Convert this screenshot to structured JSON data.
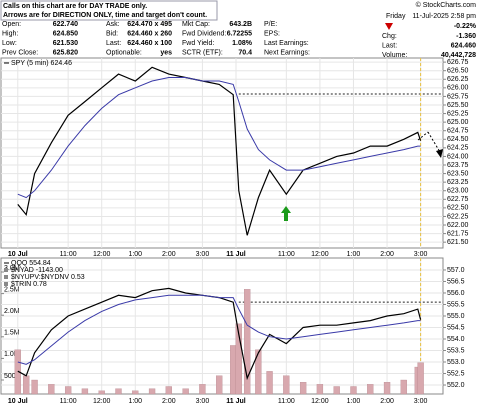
{
  "header": {
    "notice": [
      "Calls on this chart are for DAY TRADE only.",
      "Arrows are for DIRECTION ONLY, time and target don't count."
    ],
    "columns": [
      [
        [
          "Open:",
          "622.740"
        ],
        [
          "High:",
          "624.850"
        ],
        [
          "Low:",
          "621.530"
        ],
        [
          "Prev Close:",
          "625.820"
        ]
      ],
      [
        [
          "Ask:",
          "624.470 x 495"
        ],
        [
          "Bid:",
          "624.460 x 260"
        ],
        [
          "Last:",
          "624.460 x 100"
        ],
        [
          "Optionable:",
          "yes"
        ]
      ],
      [
        [
          "Mkt Cap:",
          "643.2B"
        ],
        [
          "Fwd Dividend:",
          "6.72255"
        ],
        [
          "Fwd Yield:",
          "1.08%"
        ],
        [
          "SCTR (ETF):",
          "70.4"
        ]
      ]
    ],
    "earnings_labels": [
      "P/E:",
      "EPS:",
      "Last Earnings:",
      "Next Earnings:"
    ],
    "date": [
      "Friday",
      "11-Jul-2025  2:58 pm"
    ],
    "change_pct": "-0.22%",
    "summary": [
      [
        "Chg:",
        "-1.360"
      ],
      [
        "Last:",
        "624.460"
      ],
      [
        "Volume:",
        "40,442,728"
      ]
    ],
    "watermark": "© StockCharts.com"
  },
  "chart_data": [
    {
      "type": "line",
      "grid": true,
      "x": [
        0,
        3,
        6,
        12,
        18,
        24,
        30,
        36,
        42,
        48,
        54,
        60,
        66,
        72,
        77,
        79,
        82,
        86,
        90,
        96,
        102,
        108,
        114,
        120,
        126,
        132,
        138,
        143,
        144
      ],
      "xlim": [
        -6,
        152
      ],
      "xticks": [
        {
          "value": 0,
          "label": "10 Jul"
        },
        {
          "value": 18,
          "label": "11:00"
        },
        {
          "value": 30,
          "label": "12:00"
        },
        {
          "value": 42,
          "label": "1:00"
        },
        {
          "value": 54,
          "label": "2:00"
        },
        {
          "value": 66,
          "label": "3:00"
        },
        {
          "value": 78,
          "label": "11 Jul"
        },
        {
          "value": 96,
          "label": "11:00"
        },
        {
          "value": 108,
          "label": "12:00"
        },
        {
          "value": 120,
          "label": "1:00"
        },
        {
          "value": 132,
          "label": "2:00"
        },
        {
          "value": 144,
          "label": "3:00"
        }
      ],
      "ylim": [
        621.33,
        626.87
      ],
      "yticks": [
        626.75,
        {
          "value": 626.5,
          "label": "626.50"
        },
        626.25,
        {
          "value": 626,
          "label": "626.00"
        },
        625.75,
        {
          "value": 625.5,
          "label": "625.50"
        },
        625.25,
        {
          "value": 625,
          "label": "625.00"
        },
        624.75,
        {
          "value": 624.5,
          "label": "624.50"
        },
        624.25,
        {
          "value": 624,
          "label": "624.00"
        },
        623.75,
        {
          "value": 623.5,
          "label": "623.50"
        },
        623.25,
        {
          "value": 623,
          "label": "623.00"
        },
        622.75,
        {
          "value": 622.5,
          "label": "622.50"
        },
        622.25,
        {
          "value": 622,
          "label": "622.00"
        },
        621.75,
        {
          "value": 621.5,
          "label": "621.50"
        }
      ],
      "hline": 625.82,
      "series": [
        {
          "name": "SPY (5 min) 624.46",
          "color": "#000000",
          "values": [
            622.6,
            622.3,
            623.5,
            624.4,
            625.2,
            625.6,
            626.0,
            626.4,
            626.2,
            626.6,
            626.4,
            626.3,
            626.2,
            626.1,
            625.8,
            623.0,
            621.7,
            622.8,
            623.6,
            622.9,
            623.6,
            623.8,
            624.0,
            624.1,
            624.3,
            624.3,
            624.5,
            624.7,
            624.46
          ]
        },
        {
          "color": "#3a3aa8",
          "values": [
            622.9,
            622.8,
            623.0,
            623.6,
            624.3,
            624.9,
            625.4,
            625.8,
            626.0,
            626.2,
            626.3,
            626.3,
            626.2,
            626.2,
            626.1,
            625.6,
            624.8,
            624.2,
            623.9,
            623.6,
            623.6,
            623.7,
            623.8,
            623.9,
            624.0,
            624.1,
            624.2,
            624.3,
            624.3
          ]
        }
      ]
    },
    {
      "type": "line",
      "grid": true,
      "x": [
        0,
        3,
        6,
        12,
        18,
        24,
        30,
        36,
        42,
        48,
        54,
        60,
        66,
        72,
        77,
        79,
        82,
        86,
        90,
        96,
        102,
        108,
        114,
        120,
        126,
        132,
        138,
        143,
        144
      ],
      "xlim": [
        -6,
        152
      ],
      "xticks": [
        {
          "value": 0,
          "label": "10 Jul"
        },
        {
          "value": 18,
          "label": "11:00"
        },
        {
          "value": 30,
          "label": "12:00"
        },
        {
          "value": 42,
          "label": "1:00"
        },
        {
          "value": 54,
          "label": "2:00"
        },
        {
          "value": 66,
          "label": "3:00"
        },
        {
          "value": 78,
          "label": "11 Jul"
        },
        {
          "value": 96,
          "label": "11:00"
        },
        {
          "value": 108,
          "label": "12:00"
        },
        {
          "value": 120,
          "label": "1:00"
        },
        {
          "value": 132,
          "label": "2:00"
        },
        {
          "value": 144,
          "label": "3:00"
        }
      ],
      "ylim": [
        551.61,
        557.52
      ],
      "yticks": [
        {
          "value": 557,
          "label": "557.0"
        },
        556.5,
        {
          "value": 556,
          "label": "556.0"
        },
        555.5,
        {
          "value": 555,
          "label": "555.0"
        },
        554.5,
        {
          "value": 554,
          "label": "554.0"
        },
        553.5,
        {
          "value": 553,
          "label": "553.0"
        },
        552.5,
        {
          "value": 552,
          "label": "552.0"
        }
      ],
      "y2lim": [
        176000,
        3324000
      ],
      "y2ticks": [
        {
          "value": 3000000,
          "label": "3.0M"
        },
        {
          "value": 2500000,
          "label": "2.5M"
        },
        {
          "value": 2000000,
          "label": "2.0M"
        },
        {
          "value": 1500000,
          "label": "1.5M"
        },
        {
          "value": 1000000,
          "label": "1.0M"
        },
        {
          "value": 500000,
          "label": "500K"
        }
      ],
      "hline": 555.6,
      "legend_extra": [
        "$NYAD -1143.00",
        "$NYUPV:$NYDNV 0.53",
        "$TRIN 0.78"
      ],
      "series": [
        {
          "type": "bar",
          "axis": "y2",
          "color": "#d8a8ae",
          "values": [
            1200000,
            600000,
            500000,
            400000,
            350000,
            300000,
            250000,
            300000,
            250000,
            300000,
            350000,
            300000,
            400000,
            600000,
            1300000,
            1800000,
            2600000,
            1200000,
            700000,
            600000,
            450000,
            400000,
            350000,
            350000,
            400000,
            450000,
            500000,
            800000,
            900000
          ]
        },
        {
          "name": "QQQ 554.84",
          "color": "#000000",
          "values": [
            552.6,
            552.4,
            553.4,
            554.4,
            555.0,
            555.3,
            555.6,
            555.9,
            555.8,
            556.1,
            556.2,
            556.0,
            555.9,
            555.8,
            555.6,
            554.2,
            552.3,
            553.4,
            554.2,
            553.8,
            554.5,
            554.6,
            554.6,
            554.7,
            554.8,
            555.0,
            555.1,
            555.3,
            554.84
          ]
        },
        {
          "color": "#3a3aa8",
          "values": [
            553.0,
            552.9,
            553.1,
            553.7,
            554.3,
            554.8,
            555.2,
            555.5,
            555.7,
            555.8,
            555.9,
            555.9,
            555.9,
            555.8,
            555.8,
            555.3,
            554.6,
            554.3,
            554.1,
            554.0,
            554.1,
            554.2,
            554.3,
            554.4,
            554.5,
            554.6,
            554.7,
            554.8,
            554.8
          ]
        }
      ]
    }
  ]
}
